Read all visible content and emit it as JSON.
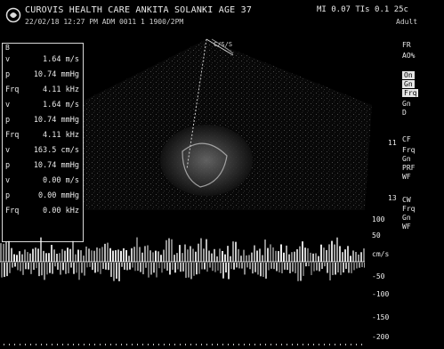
{
  "header": {
    "line1": "CUROVIS HEALTH CARE  ANKITA SOLANKI AGE 37",
    "line2": "22/02/18 12:27 PM  ADM 0011  1 1900/2PM",
    "right_top": "MI 0.07 TIs 0.1 25c",
    "right_sub": "Adult"
  },
  "measurements": {
    "caption": "B",
    "rows": [
      {
        "k": "v",
        "v": "1.64 m/s"
      },
      {
        "k": "p",
        "v": "10.74 mmHg"
      },
      {
        "k": "Frq",
        "v": "4.11 kHz"
      },
      {
        "k": "v",
        "v": "1.64 m/s"
      },
      {
        "k": "p",
        "v": "10.74 mmHg"
      },
      {
        "k": "Frq",
        "v": "4.11 kHz"
      },
      {
        "k": "v",
        "v": "163.5 cm/s"
      },
      {
        "k": "p",
        "v": "10.74 mmHg"
      },
      {
        "k": "v",
        "v": "0.00 m/s"
      },
      {
        "k": "p",
        "v": "0.00 mmHg"
      },
      {
        "k": "Frq",
        "v": "0.00 kHz"
      }
    ]
  },
  "right_panel": {
    "items": [
      {
        "label": "FR",
        "hl": false
      },
      {
        "label": "AO%",
        "hl": false
      },
      {
        "label": "On",
        "hl": true
      },
      {
        "label": "Gn",
        "hl": true
      },
      {
        "label": "Frq",
        "hl": true
      },
      {
        "label": "Gn",
        "hl": false
      },
      {
        "label": "D",
        "hl": false
      },
      {
        "label": "CF",
        "hl": false
      },
      {
        "label": "Frq",
        "hl": false
      },
      {
        "label": "Gn",
        "hl": false
      },
      {
        "label": "PRF",
        "hl": false
      },
      {
        "label": "WF",
        "hl": false
      },
      {
        "label": "CW",
        "hl": false
      },
      {
        "label": "Frq",
        "hl": false
      },
      {
        "label": "Gn",
        "hl": false
      },
      {
        "label": "WF",
        "hl": false
      }
    ],
    "numbers": [
      "11",
      "13"
    ]
  },
  "sector_label": "C/S/S",
  "doppler_scale": {
    "unit": "cm/s",
    "ticks": [
      "100",
      "50",
      "-50",
      "-100",
      "-150",
      "-200"
    ]
  },
  "colors": {
    "background": "#000000",
    "text": "#eaeaea",
    "signal": "#ffffff"
  }
}
